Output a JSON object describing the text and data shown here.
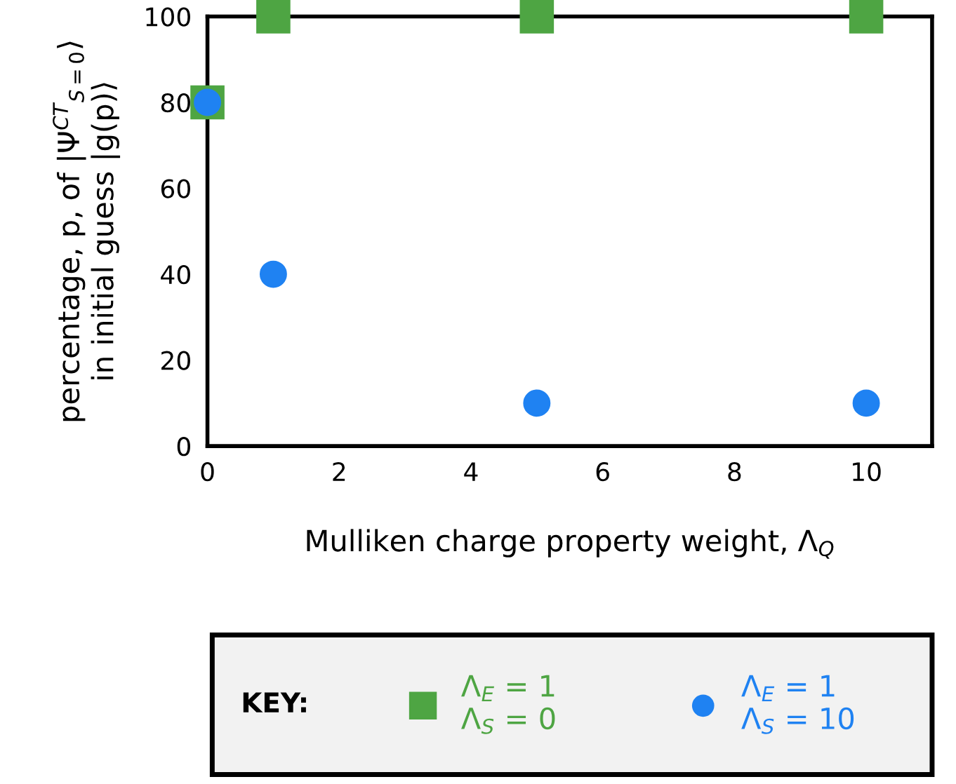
{
  "chart_data": {
    "type": "scatter",
    "xlabel": "Mulliken charge property weight, Λ$_{Q}$",
    "ylabel": "percentage, p, of |Ψ$^{CT}$$_{S=0}$⟩\nin initial guess |g(p)⟩",
    "legend_title": "KEY:",
    "x": [
      0,
      1,
      5,
      10
    ],
    "series": [
      {
        "name": "Λ$_{E}$ = 1\nΛ$_{S}$ = 0",
        "color": "#4ea543",
        "marker": "square",
        "values": [
          80,
          100,
          100,
          100
        ]
      },
      {
        "name": "Λ$_{E}$ = 1\nΛ$_{S}$ = 10",
        "color": "#1f82f2",
        "marker": "circle",
        "values": [
          80,
          40,
          10,
          10
        ]
      }
    ],
    "xlim": [
      0,
      11
    ],
    "ylim": [
      0,
      100
    ],
    "xticks": [
      0,
      2,
      4,
      6,
      8,
      10
    ],
    "yticks": [
      0,
      20,
      40,
      60,
      80,
      100
    ],
    "grid": false,
    "legend": "bottom"
  }
}
